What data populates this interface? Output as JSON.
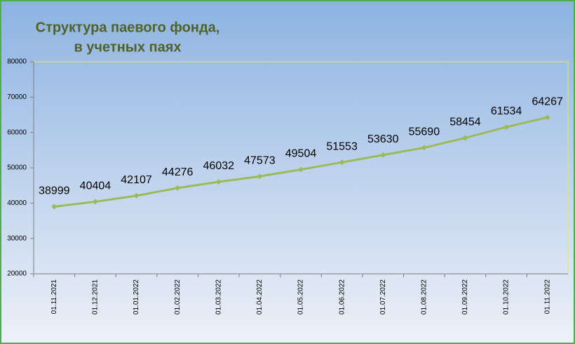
{
  "chart_data": {
    "type": "line",
    "title": [
      "Структура паевого фонда,",
      "в учетных паях"
    ],
    "categories": [
      "01.11.2021",
      "01.12.2021",
      "01.01.2022",
      "01.02.2022",
      "01.03.2022",
      "01.04.2022",
      "01.05.2022",
      "01.06.2022",
      "01.07.2022",
      "01.08.2022",
      "01.09.2022",
      "01.10.2022",
      "01.11.2022"
    ],
    "values": [
      38999,
      40404,
      42107,
      44276,
      46032,
      47573,
      49504,
      51553,
      53630,
      55690,
      58454,
      61534,
      64267
    ],
    "color": "#9bbb59",
    "ylim": [
      20000,
      80000
    ],
    "yticks": [
      20000,
      30000,
      40000,
      50000,
      60000,
      70000,
      80000
    ],
    "grid": false
  }
}
